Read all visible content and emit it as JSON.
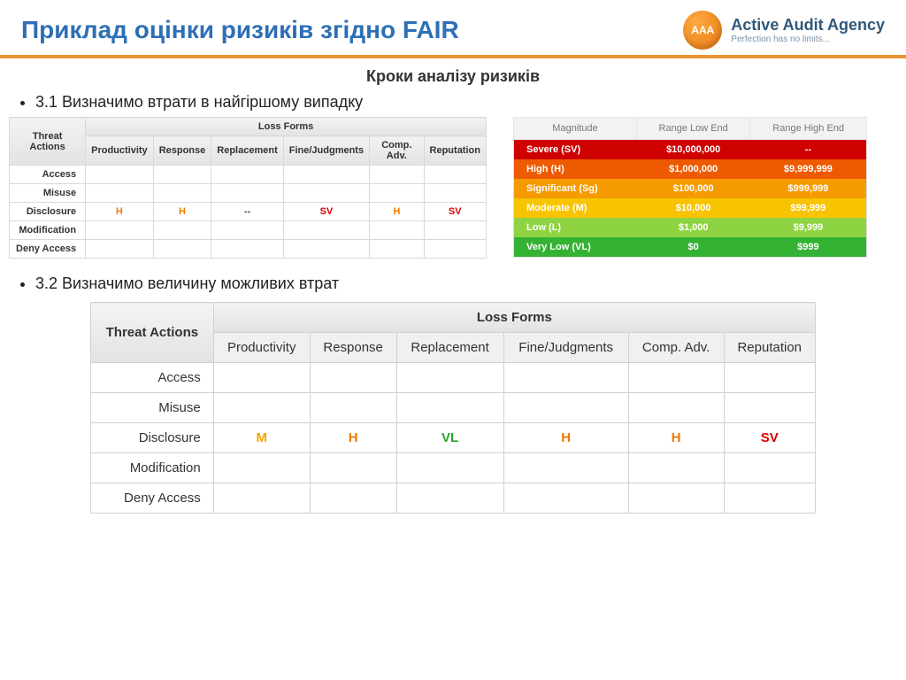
{
  "header": {
    "title": "Приклад оцінки ризиків згідно FAIR",
    "brand_name": "Active Audit Agency",
    "brand_tagline": "Perfection has no limits...",
    "logo_text": "AAA",
    "rule_color": "#e89531",
    "title_color": "#2e6fb5"
  },
  "subtitle": "Кроки аналізу ризиків",
  "bullets": {
    "b1": "3.1 Визначимо втрати в найгіршому випадку",
    "b2": "3.2 Визначимо величину можливих втрат"
  },
  "rating_colors": {
    "SV": "#d80000",
    "H": "#ee7a00",
    "Sg": "#f5a400",
    "M": "#f5a400",
    "L": "#6ebf2e",
    "VL": "#28a528",
    "--": "#555555"
  },
  "loss_table": {
    "super_header": "Loss Forms",
    "row_header_title": "Threat Actions",
    "columns": [
      "Productivity",
      "Response",
      "Replacement",
      "Fine/Judgments",
      "Comp. Adv.",
      "Reputation"
    ],
    "rows": [
      "Access",
      "Misuse",
      "Disclosure",
      "Modification",
      "Deny Access"
    ]
  },
  "loss1_values": {
    "Disclosure": [
      "H",
      "H",
      "--",
      "SV",
      "H",
      "SV"
    ]
  },
  "loss2_values": {
    "Disclosure": [
      "M",
      "H",
      "VL",
      "H",
      "H",
      "SV"
    ]
  },
  "magnitude": {
    "headers": [
      "Magnitude",
      "Range Low End",
      "Range High End"
    ],
    "rows": [
      {
        "label": "Severe (SV)",
        "low": "$10,000,000",
        "high": "--",
        "bg": "#cf0000"
      },
      {
        "label": "High (H)",
        "low": "$1,000,000",
        "high": "$9,999,999",
        "bg": "#ee5a00"
      },
      {
        "label": "Significant (Sg)",
        "low": "$100,000",
        "high": "$999,999",
        "bg": "#f59a00"
      },
      {
        "label": "Moderate (M)",
        "low": "$10,000",
        "high": "$99,999",
        "bg": "#f8c400"
      },
      {
        "label": "Low (L)",
        "low": "$1,000",
        "high": "$9,999",
        "bg": "#8ed442"
      },
      {
        "label": "Very Low (VL)",
        "low": "$0",
        "high": "$999",
        "bg": "#34b233"
      }
    ]
  }
}
